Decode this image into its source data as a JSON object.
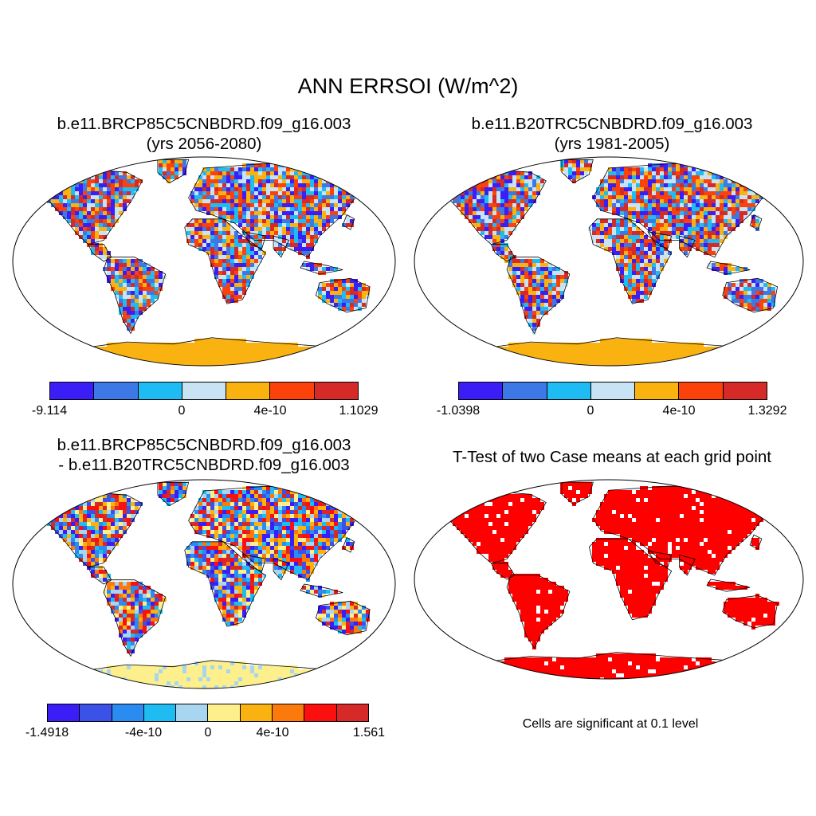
{
  "title": "ANN ERRSOI (W/m^2)",
  "panels": [
    {
      "title_line1": "b.e11.BRCP85C5CNBDRD.f09_g16.003",
      "title_line2": "(yrs 2056-2080)",
      "palette": [
        "#3b1ef5",
        "#3c78e6",
        "#1ebcf2",
        "#c8e4f4",
        "#f9b20f",
        "#fb420b",
        "#d52a28"
      ],
      "tick_labels": [
        "-9.114",
        "0",
        "4e-10",
        "1.1029"
      ],
      "antarctica_color": "#f9b20f"
    },
    {
      "title_line1": "b.e11.B20TRC5CNBDRD.f09_g16.003",
      "title_line2": "(yrs 1981-2005)",
      "palette": [
        "#3b1ef5",
        "#3c78e6",
        "#1ebcf2",
        "#c8e4f4",
        "#f9b20f",
        "#fb420b",
        "#d52a28"
      ],
      "tick_labels": [
        "-1.0398",
        "0",
        "4e-10",
        "1.3292"
      ],
      "antarctica_color": "#f9b20f"
    },
    {
      "title_line1": "b.e11.BRCP85C5CNBDRD.f09_g16.003",
      "title_line2": "- b.e11.B20TRC5CNBDRD.f09_g16.003",
      "palette": [
        "#3b1ef5",
        "#3c52e6",
        "#2a8cf0",
        "#1ebcf2",
        "#a8d6f0",
        "#fdf08c",
        "#f9b20f",
        "#fb7a0b",
        "#fb0f0f",
        "#d52a28"
      ],
      "tick_labels": [
        "-1.4918",
        "-4e-10",
        "0",
        "4e-10",
        "1.561"
      ],
      "antarctica_color": "#fdf08c"
    },
    {
      "title_line1": "T-Test of two Case means at each grid point",
      "fill_color": "#ff0000",
      "note": "Cells are significant at 0.1 level"
    }
  ]
}
